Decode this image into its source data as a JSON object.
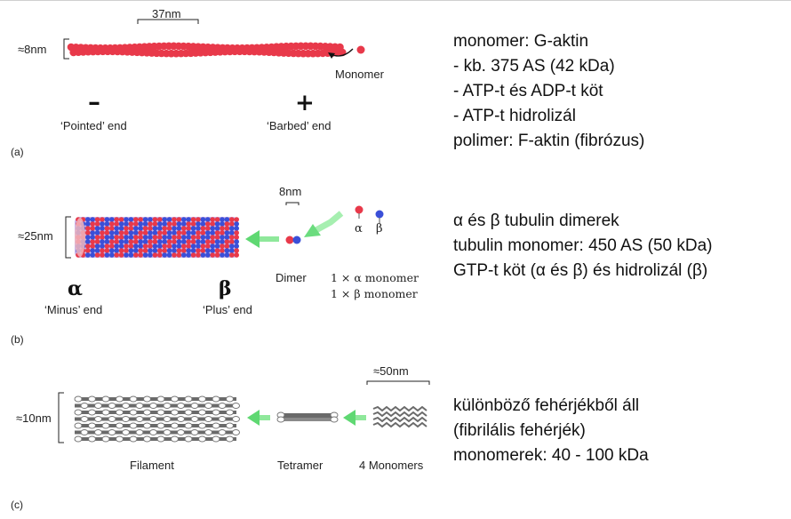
{
  "panel_a": {
    "tag": "(a)",
    "scale_top": "37nm",
    "scale_left": "≈8nm",
    "monomer": "Monomer",
    "minus_sign": "–",
    "plus_sign": "+",
    "pointed_end": "‘Pointed’ end",
    "barbed_end": "‘Barbed’ end",
    "colors": {
      "actin": "#e8394a"
    }
  },
  "panel_b": {
    "tag": "(b)",
    "scale_top": "8nm",
    "scale_left": "≈25nm",
    "alpha_small": "α",
    "beta_small": "β",
    "dimer": "Dimer",
    "mono_alpha": "1 × α monomer",
    "mono_beta": "1 × β monomer",
    "alpha_big": "α",
    "beta_big": "β",
    "minus_end": "‘Minus’ end",
    "plus_end": "‘Plus’ end",
    "colors": {
      "alpha": "#e8394a",
      "beta": "#3a4fd8",
      "arrow": "#7be08a"
    }
  },
  "panel_c": {
    "tag": "(c)",
    "scale_top": "≈50nm",
    "scale_left": "≈10nm",
    "filament": "Filament",
    "tetramer": "Tetramer",
    "monomers": "4 Monomers",
    "colors": {
      "fiber": "#6a6a6a"
    }
  },
  "text_a": [
    "monomer: G-aktin",
    "- kb.  375 AS (42 kDa)",
    "- ATP-t és ADP-t köt",
    "- ATP-t hidrolizál",
    "polimer: F-aktin (fibrózus)"
  ],
  "text_b": [
    "α és β tubulin dimerek",
    "tubulin monomer: 450 AS (50 kDa)",
    "GTP-t köt (α és β) és hidrolizál (β)"
  ],
  "text_c": [
    "különböző fehérjékből áll",
    "(fibrilális fehérjék)",
    "monomerek: 40 - 100 kDa"
  ]
}
